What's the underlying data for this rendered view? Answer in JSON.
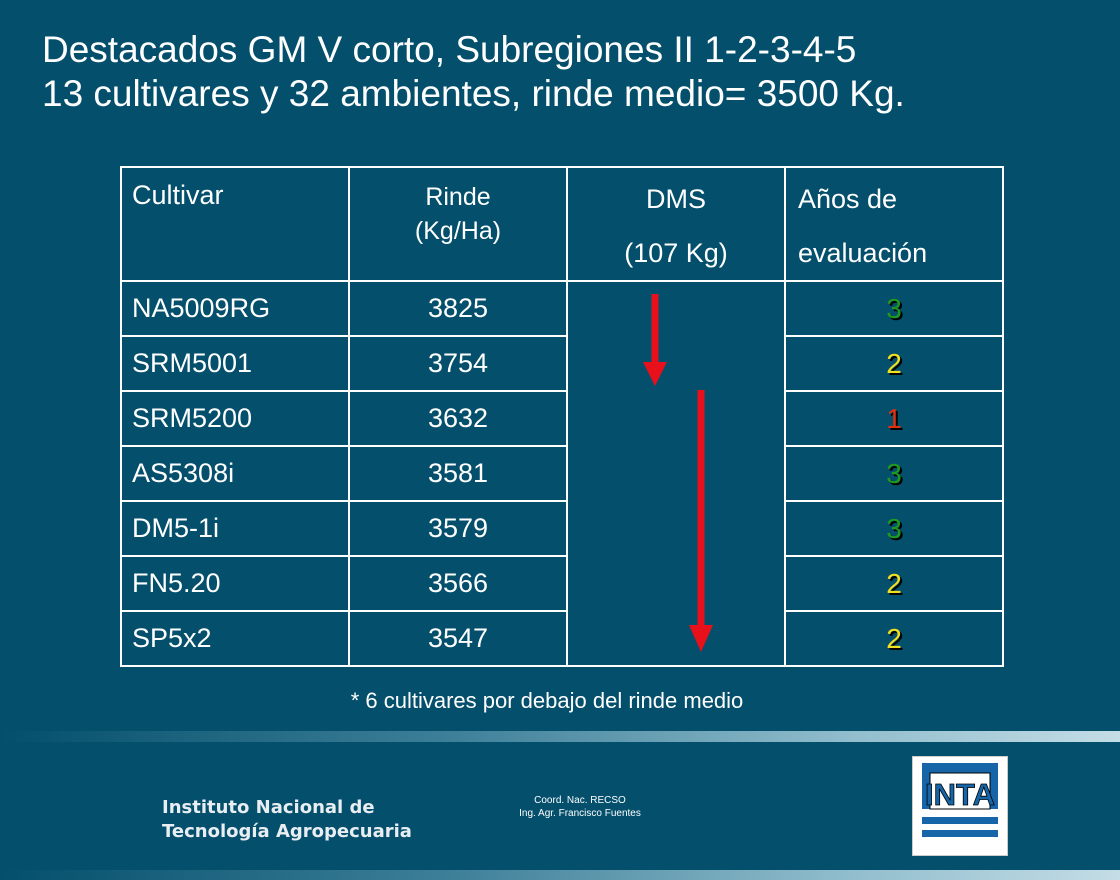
{
  "slide": {
    "title_line1": "Destacados GM V corto, Subregiones II 1-2-3-4-5",
    "title_line2": "13 cultivares y 32 ambientes, rinde medio= 3500 Kg."
  },
  "table": {
    "headers": {
      "cultivar": "Cultivar",
      "rinde_line1": "Rinde",
      "rinde_line2": "(Kg/Ha)",
      "dms_line1": "DMS",
      "dms_line2": "(107 Kg)",
      "years_line1": "Años de",
      "years_line2": "evaluación"
    },
    "rows": [
      {
        "cultivar": "NA5009RG",
        "rinde": "3825",
        "years": "3",
        "years_color": "#1e9a1e"
      },
      {
        "cultivar": "SRM5001",
        "rinde": "3754",
        "years": "2",
        "years_color": "#f0e020"
      },
      {
        "cultivar": "SRM5200",
        "rinde": "3632",
        "years": "1",
        "years_color": "#e03010"
      },
      {
        "cultivar": "AS5308i",
        "rinde": "3581",
        "years": "3",
        "years_color": "#1e9a1e"
      },
      {
        "cultivar": "DM5-1i",
        "rinde": "3579",
        "years": "3",
        "years_color": "#1e9a1e"
      },
      {
        "cultivar": "FN5.20",
        "rinde": "3566",
        "years": "2",
        "years_color": "#f0e020"
      },
      {
        "cultivar": "SP5x2",
        "rinde": "3547",
        "years": "2",
        "years_color": "#f0e020"
      }
    ],
    "arrow_color": "#e8101a"
  },
  "footnote": "* 6 cultivares por debajo del rinde medio",
  "footer": {
    "institute_line1": "Instituto Nacional de",
    "institute_line2": "Tecnología Agropecuaria",
    "coord_line1": "Coord. Nac. RECSO",
    "coord_line2": "Ing. Agr. Francisco Fuentes",
    "logo_text": "INTA",
    "logo_color": "#1565a8"
  },
  "colors": {
    "background": "#044f6c"
  }
}
